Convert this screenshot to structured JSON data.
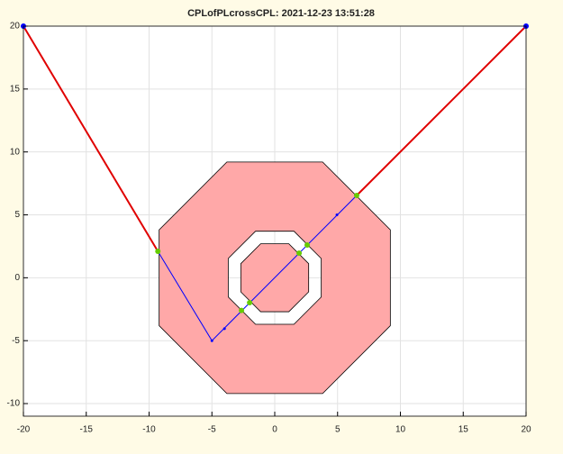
{
  "chart_data": {
    "type": "polygon-plot",
    "title": "CPLofPLcrossCPL: 2021-12-23 13:51:28",
    "xlim": [
      -20,
      20
    ],
    "ylim": [
      -11,
      20
    ],
    "xticks": [
      -20,
      -15,
      -10,
      -5,
      0,
      5,
      10,
      15,
      20
    ],
    "yticks": [
      -10,
      -5,
      0,
      5,
      10,
      15,
      20
    ],
    "grid": true,
    "region": {
      "fill_color": "#ffa8a8",
      "edge_color": "#000000",
      "x": [
        -3.81,
        3.81,
        9.2,
        9.2,
        3.81,
        -3.81,
        -9.2,
        -9.2,
        null,
        -1.53,
        1.53,
        3.7,
        3.7,
        1.53,
        -1.53,
        -3.7,
        -3.7,
        null,
        -1.12,
        1.12,
        2.7,
        2.7,
        1.12,
        -1.12,
        -2.7,
        -2.7
      ],
      "y": [
        9.2,
        9.2,
        3.81,
        -3.81,
        -9.2,
        -9.2,
        -3.81,
        3.81,
        null,
        3.7,
        3.7,
        1.53,
        -1.53,
        -3.7,
        -3.7,
        -1.53,
        1.53,
        null,
        2.7,
        2.7,
        1.12,
        -1.12,
        -2.7,
        -2.7,
        -1.12,
        1.12
      ]
    },
    "series": [
      {
        "style": "line",
        "color": "#e00000",
        "width": 2,
        "x": [
          -20,
          -9.3,
          null,
          6.52,
          20
        ],
        "y": [
          20,
          2.1,
          null,
          6.54,
          20
        ]
      },
      {
        "style": "line",
        "color": "#0000ff",
        "width": 1,
        "x": [
          -9.3,
          -5,
          6.52
        ],
        "y": [
          2.1,
          -5,
          6.54
        ]
      },
      {
        "style": "markers",
        "color": "#0000ff",
        "size": 1.5,
        "x": [
          -5,
          -4,
          4.95
        ],
        "y": [
          -5,
          -4.05,
          5
        ]
      },
      {
        "style": "markers",
        "color": "#66cc00",
        "size": 3,
        "x": [
          -9.3,
          -2.65,
          -2.0,
          1.94,
          2.58,
          6.52
        ],
        "y": [
          2.1,
          -2.6,
          -1.98,
          1.96,
          2.6,
          6.54
        ]
      },
      {
        "style": "markers",
        "color": "#0000ff",
        "size": 3,
        "x": [
          -20,
          20
        ],
        "y": [
          20,
          20
        ]
      }
    ]
  }
}
